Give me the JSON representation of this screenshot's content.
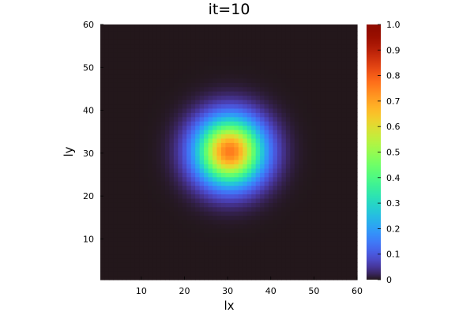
{
  "chart_data": {
    "type": "heatmap",
    "title": "it=10",
    "xlabel": "lx",
    "ylabel": "ly",
    "grid_size": [
      60,
      60
    ],
    "xlim": [
      0.5,
      60
    ],
    "ylim": [
      0.5,
      60
    ],
    "x_ticks": [
      10,
      20,
      30,
      40,
      50,
      60
    ],
    "y_ticks": [
      10,
      20,
      30,
      40,
      50,
      60
    ],
    "field": {
      "kind": "gaussian",
      "center": [
        30.5,
        30.5
      ],
      "sigma": 5.2,
      "peak": 0.76,
      "background": 0.0
    },
    "colorbar": {
      "colormap": "turbo",
      "min": 0,
      "max": 1,
      "ticks": [
        0,
        0.1,
        0.2,
        0.3,
        0.4,
        0.5,
        0.6,
        0.7,
        0.8,
        0.9,
        1.0
      ],
      "tick_labels": [
        "0",
        "0.1",
        "0.2",
        "0.3",
        "0.4",
        "0.5",
        "0.6",
        "0.7",
        "0.8",
        "0.9",
        "1.0"
      ]
    },
    "grid": false,
    "legend": "none"
  }
}
